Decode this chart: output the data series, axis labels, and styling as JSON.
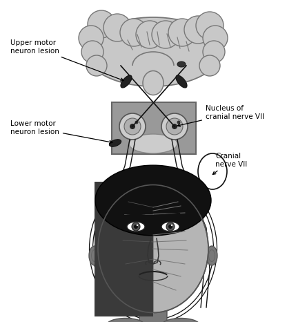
{
  "background_color": "#ffffff",
  "brain_color": "#c8c8c8",
  "brain_edge": "#777777",
  "nucleus_box_color": "#999999",
  "nucleus_box_edge": "#666666",
  "face_dark_color": "#3a3a3a",
  "face_mid_color": "#787878",
  "face_light_color": "#b5b5b5",
  "nerve_color": "#111111",
  "ann_color": "#000000",
  "hair_color": "#111111",
  "figsize": [
    4.45,
    4.66
  ],
  "dpi": 100,
  "labels": {
    "upper_motor": "Upper motor\nneuron lesion",
    "lower_motor": "Lower motor\nneuron lesion",
    "nucleus": "Nucleus of\ncranial nerve VII",
    "cranial": "Cranial\nnerve VII"
  }
}
